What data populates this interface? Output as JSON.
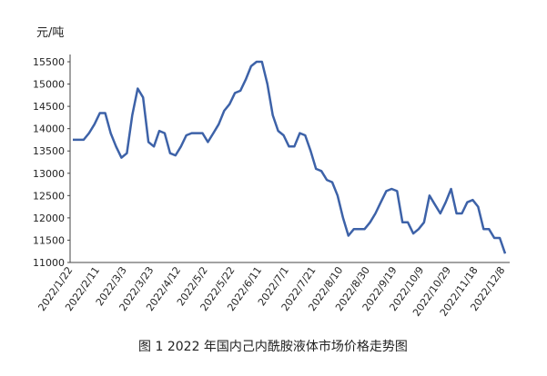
{
  "chart_data": {
    "type": "line",
    "y_axis_label": "元/吨",
    "caption": "图 1  2022 年国内己内酰胺液体市场价格走势图",
    "categories": [
      "2022/1/22",
      null,
      null,
      null,
      null,
      "2022/2/11",
      null,
      null,
      null,
      null,
      "2022/3/3",
      null,
      null,
      null,
      null,
      "2022/3/23",
      null,
      null,
      null,
      null,
      "2022/4/12",
      null,
      null,
      null,
      null,
      "2022/5/2",
      null,
      null,
      null,
      null,
      "2022/5/22",
      null,
      null,
      null,
      null,
      "2022/6/11",
      null,
      null,
      null,
      null,
      "2022/7/1",
      null,
      null,
      null,
      null,
      "2022/7/21",
      null,
      null,
      null,
      null,
      "2022/8/10",
      null,
      null,
      null,
      null,
      "2022/8/30",
      null,
      null,
      null,
      null,
      "2022/9/19",
      null,
      null,
      null,
      null,
      "2022/10/9",
      null,
      null,
      null,
      null,
      "2022/10/29",
      null,
      null,
      null,
      null,
      "2022/11/18",
      null,
      null,
      null,
      null,
      "2022/12/8"
    ],
    "values": [
      13750,
      13750,
      13750,
      13900,
      14100,
      14350,
      14350,
      13900,
      13600,
      13350,
      13450,
      14300,
      14900,
      14700,
      13700,
      13600,
      13950,
      13900,
      13450,
      13400,
      13600,
      13850,
      13900,
      13900,
      13900,
      13700,
      13900,
      14100,
      14400,
      14550,
      14800,
      14850,
      15100,
      15400,
      15500,
      15500,
      15000,
      14300,
      13950,
      13850,
      13600,
      13600,
      13900,
      13850,
      13500,
      13100,
      13050,
      12850,
      12800,
      12500,
      12000,
      11600,
      11750,
      11750,
      11750,
      11900,
      12100,
      12350,
      12600,
      12650,
      12600,
      11900,
      11900,
      11650,
      11750,
      11900,
      12500,
      12300,
      12100,
      12350,
      12650,
      12100,
      12100,
      12350,
      12400,
      12250,
      11750,
      11750,
      11550,
      11550,
      11200
    ],
    "color": "#3d62a8",
    "ylim": [
      11000,
      15500
    ],
    "yticks": [
      11000,
      11500,
      12000,
      12500,
      13000,
      13500,
      14000,
      14500,
      15000,
      15500
    ],
    "grid": false
  }
}
